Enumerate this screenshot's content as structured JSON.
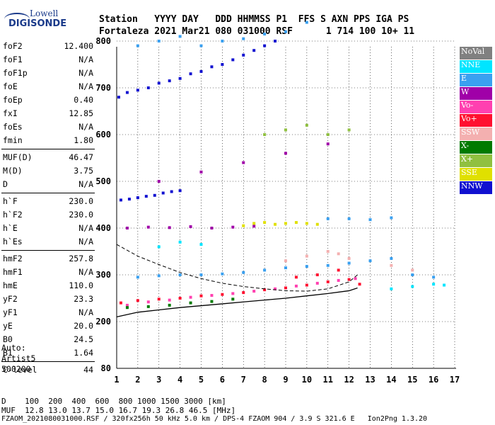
{
  "header": {
    "line1": "Station   YYYY DAY   DDD HHMMSS P1  FFS S AXN PPS IGA PS",
    "line2": "Fortaleza 2021 Mar21 080 031000 RSF      1 714 100 10+ 11"
  },
  "logo": {
    "top": "Lowell",
    "bottom": "DIGISONDE"
  },
  "params": {
    "group1": [
      {
        "k": "foF2",
        "v": "12.400"
      },
      {
        "k": "foF1",
        "v": "N/A"
      },
      {
        "k": "foF1p",
        "v": "N/A"
      },
      {
        "k": "foE",
        "v": "N/A"
      },
      {
        "k": "foEp",
        "v": "0.40"
      },
      {
        "k": "fxI",
        "v": "12.85"
      },
      {
        "k": "foEs",
        "v": "N/A"
      },
      {
        "k": "fmin",
        "v": "1.80"
      }
    ],
    "group2": [
      {
        "k": "MUF(D)",
        "v": "46.47"
      },
      {
        "k": "M(D)",
        "v": "3.75"
      },
      {
        "k": "D",
        "v": "N/A"
      }
    ],
    "group3": [
      {
        "k": "h`F",
        "v": "230.0"
      },
      {
        "k": "h`F2",
        "v": "230.0"
      },
      {
        "k": "h`E",
        "v": "N/A"
      },
      {
        "k": "h`Es",
        "v": "N/A"
      }
    ],
    "group4": [
      {
        "k": "hmF2",
        "v": "257.8"
      },
      {
        "k": "hmF1",
        "v": "N/A"
      },
      {
        "k": "hmE",
        "v": "110.0"
      },
      {
        "k": "yF2",
        "v": "23.3"
      },
      {
        "k": "yF1",
        "v": "N/A"
      },
      {
        "k": "yE",
        "v": "20.0"
      },
      {
        "k": "B0",
        "v": "24.5"
      },
      {
        "k": "B1",
        "v": "1.64"
      }
    ],
    "group5": [
      {
        "k": "C-level",
        "v": "44"
      }
    ]
  },
  "auto": {
    "line1": "Auto:",
    "line2": "Artist5",
    "line3": "500200"
  },
  "legend": [
    {
      "label": "NoVal",
      "color": "#808080"
    },
    {
      "label": "NNE",
      "color": "#00e5ff"
    },
    {
      "label": "E",
      "color": "#3aa0f0"
    },
    {
      "label": "W",
      "color": "#a000a8"
    },
    {
      "label": "Vo-",
      "color": "#ff40b0"
    },
    {
      "label": "Vo+",
      "color": "#ff1030"
    },
    {
      "label": "SSW",
      "color": "#f4b0b0"
    },
    {
      "label": "X-",
      "color": "#007a00"
    },
    {
      "label": "X+",
      "color": "#90c040"
    },
    {
      "label": "SSE",
      "color": "#e0e000"
    },
    {
      "label": "NNW",
      "color": "#1010d0"
    }
  ],
  "bottom": {
    "dist_line": "D    100  200  400  600  800 1000 1500 3000 [km]",
    "muf_line": "MUF  12.8 13.0 13.7 15.0 16.7 19.3 26.8 46.5 [MHz]",
    "file_line": "FZAOM_2021080031000.RSF / 320fx256h 50 kHz 5.0 km / DPS-4 FZAOM 904 / 3.9 S 321.6 E   Ion2Png 1.3.20"
  },
  "chart_data": {
    "type": "scatter",
    "xlim": [
      1,
      17
    ],
    "ylim": [
      80,
      900
    ],
    "x_ticks": [
      "1",
      "2",
      "3",
      "4",
      "5",
      "6",
      "7",
      "8",
      "9",
      "10",
      "11",
      "12",
      "13",
      "14",
      "15",
      "16",
      "17"
    ],
    "y_ticks": [
      "80",
      "200",
      "300",
      "400",
      "500",
      "600",
      "700",
      "800",
      "900"
    ],
    "grid": true,
    "series": [
      {
        "name": "NNW",
        "points": [
          [
            1.1,
            680
          ],
          [
            1.5,
            690
          ],
          [
            2,
            695
          ],
          [
            2.5,
            700
          ],
          [
            3,
            710
          ],
          [
            3.5,
            715
          ],
          [
            4,
            720
          ],
          [
            4.5,
            730
          ],
          [
            5,
            735
          ],
          [
            5.5,
            745
          ],
          [
            6,
            750
          ],
          [
            6.5,
            760
          ],
          [
            7,
            770
          ],
          [
            7.5,
            780
          ],
          [
            8,
            790
          ],
          [
            8.5,
            800
          ],
          [
            1.2,
            460
          ],
          [
            1.6,
            462
          ],
          [
            2,
            465
          ],
          [
            2.4,
            468
          ],
          [
            2.8,
            470
          ],
          [
            3.2,
            475
          ],
          [
            3.6,
            478
          ],
          [
            4,
            480
          ]
        ]
      },
      {
        "name": "E",
        "points": [
          [
            2,
            790
          ],
          [
            3,
            800
          ],
          [
            4,
            810
          ],
          [
            5,
            790
          ],
          [
            6,
            800
          ],
          [
            7,
            805
          ],
          [
            8,
            815
          ],
          [
            9,
            820
          ],
          [
            10,
            840
          ],
          [
            2,
            295
          ],
          [
            3,
            298
          ],
          [
            4,
            300
          ],
          [
            5,
            300
          ],
          [
            6,
            302
          ],
          [
            7,
            305
          ],
          [
            8,
            310
          ],
          [
            9,
            315
          ],
          [
            10,
            318
          ],
          [
            11,
            320
          ],
          [
            12,
            325
          ],
          [
            13,
            330
          ],
          [
            14,
            335
          ],
          [
            15,
            300
          ],
          [
            16,
            295
          ],
          [
            11,
            420
          ],
          [
            12,
            420
          ],
          [
            13,
            418
          ],
          [
            14,
            422
          ]
        ]
      },
      {
        "name": "Vo+",
        "points": [
          [
            1.2,
            240
          ],
          [
            2,
            245
          ],
          [
            3,
            248
          ],
          [
            4,
            250
          ],
          [
            5,
            255
          ],
          [
            6,
            258
          ],
          [
            7,
            262
          ],
          [
            8,
            268
          ],
          [
            9,
            272
          ],
          [
            10,
            278
          ],
          [
            11,
            285
          ],
          [
            12,
            290
          ],
          [
            12.5,
            280
          ],
          [
            11.5,
            310
          ],
          [
            10.5,
            300
          ],
          [
            9.5,
            295
          ]
        ]
      },
      {
        "name": "Vo-",
        "points": [
          [
            1.5,
            235
          ],
          [
            2.5,
            242
          ],
          [
            3.5,
            246
          ],
          [
            4.5,
            252
          ],
          [
            5.5,
            256
          ],
          [
            6.5,
            260
          ],
          [
            7.5,
            265
          ],
          [
            8.5,
            270
          ],
          [
            9.5,
            276
          ],
          [
            10.5,
            282
          ],
          [
            11.5,
            288
          ],
          [
            12.3,
            292
          ]
        ]
      },
      {
        "name": "W",
        "points": [
          [
            1.5,
            400
          ],
          [
            2.5,
            402
          ],
          [
            3.5,
            401
          ],
          [
            4.5,
            403
          ],
          [
            5.5,
            400
          ],
          [
            6.5,
            402
          ],
          [
            7.5,
            404
          ],
          [
            3,
            500
          ],
          [
            5,
            520
          ],
          [
            7,
            540
          ],
          [
            9,
            560
          ],
          [
            11,
            580
          ]
        ]
      },
      {
        "name": "SSE",
        "points": [
          [
            7,
            405
          ],
          [
            7.5,
            410
          ],
          [
            8,
            412
          ],
          [
            8.5,
            408
          ],
          [
            9,
            410
          ],
          [
            9.5,
            412
          ],
          [
            10,
            410
          ],
          [
            10.5,
            408
          ]
        ]
      },
      {
        "name": "X-",
        "points": [
          [
            1.5,
            230
          ],
          [
            2.5,
            232
          ],
          [
            3.5,
            235
          ],
          [
            4.5,
            240
          ],
          [
            5.5,
            243
          ],
          [
            6.5,
            248
          ]
        ]
      },
      {
        "name": "X+",
        "points": [
          [
            8,
            600
          ],
          [
            9,
            610
          ],
          [
            10,
            620
          ],
          [
            11,
            600
          ],
          [
            12,
            610
          ]
        ]
      },
      {
        "name": "SSW",
        "points": [
          [
            9,
            330
          ],
          [
            10,
            340
          ],
          [
            11,
            350
          ],
          [
            11.5,
            345
          ],
          [
            12,
            335
          ],
          [
            14,
            320
          ],
          [
            15,
            310
          ]
        ]
      },
      {
        "name": "NNE",
        "points": [
          [
            3,
            360
          ],
          [
            4,
            370
          ],
          [
            5,
            365
          ],
          [
            14,
            270
          ],
          [
            15,
            275
          ],
          [
            16,
            280
          ],
          [
            16.5,
            278
          ]
        ]
      }
    ],
    "profile_line": [
      [
        1,
        210
      ],
      [
        2,
        220
      ],
      [
        3,
        225
      ],
      [
        4,
        230
      ],
      [
        5,
        234
      ],
      [
        6,
        238
      ],
      [
        7,
        242
      ],
      [
        8,
        246
      ],
      [
        9,
        250
      ],
      [
        10,
        255
      ],
      [
        11,
        260
      ],
      [
        12,
        266
      ],
      [
        12.4,
        272
      ]
    ],
    "dashed_line": [
      [
        1,
        365
      ],
      [
        2,
        340
      ],
      [
        3,
        322
      ],
      [
        4,
        305
      ],
      [
        5,
        292
      ],
      [
        6,
        282
      ],
      [
        7,
        275
      ],
      [
        8,
        270
      ],
      [
        9,
        266
      ],
      [
        10,
        265
      ],
      [
        11,
        270
      ],
      [
        12,
        285
      ],
      [
        12.4,
        300
      ]
    ]
  }
}
